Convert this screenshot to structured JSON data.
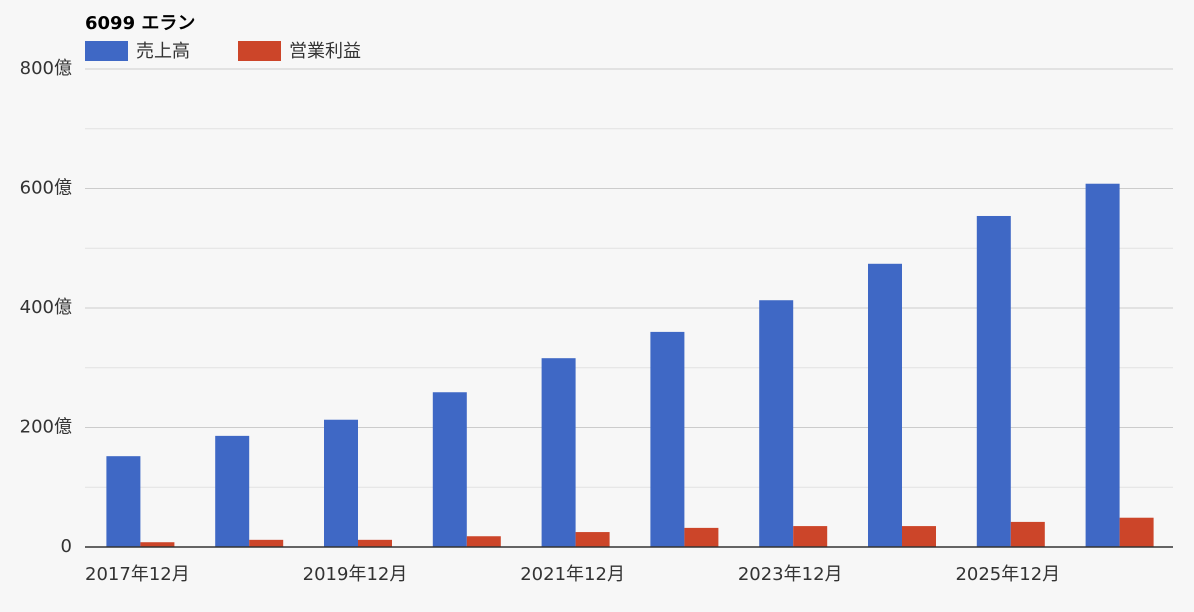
{
  "chart_data": {
    "type": "bar",
    "title": "6099 エラン",
    "categories": [
      "2017年12月",
      null,
      "2019年12月",
      null,
      "2021年12月",
      null,
      "2023年12月",
      null,
      "2025年12月",
      null
    ],
    "series": [
      {
        "name": "売上高",
        "color": "#3f68c5",
        "values": [
          152,
          186,
          213,
          259,
          316,
          360,
          413,
          474,
          554,
          608
        ]
      },
      {
        "name": "営業利益",
        "color": "#cc4529",
        "values": [
          8,
          12,
          12,
          18,
          25,
          32,
          35,
          35,
          42,
          49
        ]
      }
    ],
    "ylim": [
      0,
      800
    ],
    "yticks": [
      0,
      {
        "value": 200,
        "label": "200億"
      },
      {
        "value": 400,
        "label": "400億"
      },
      {
        "value": 600,
        "label": "600億"
      },
      {
        "value": 800,
        "label": "800億"
      }
    ],
    "minor_yticks": [
      100,
      300,
      500,
      700
    ],
    "grid": true,
    "legend": "top"
  }
}
